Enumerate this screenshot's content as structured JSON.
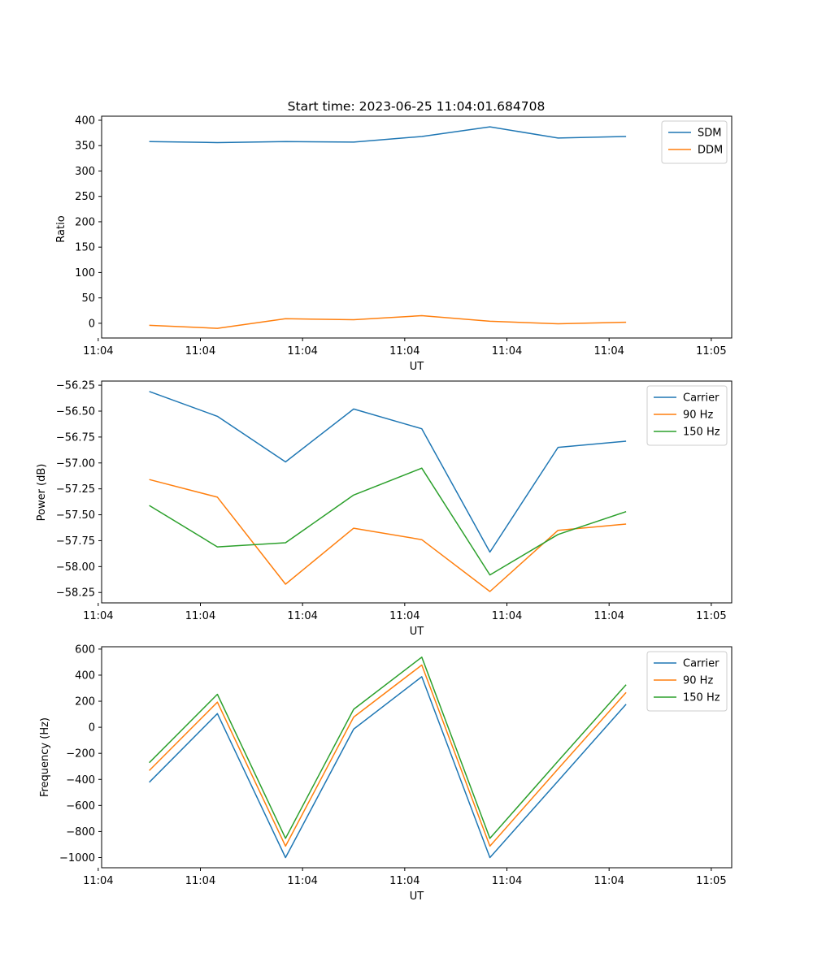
{
  "figure": {
    "title": "Start time: 2023-06-25 11:04:01.684708"
  },
  "colors": {
    "blue": "#1f77b4",
    "orange": "#ff7f0e",
    "green": "#2ca02c"
  },
  "chart_data": [
    {
      "type": "line",
      "title": "Start time: 2023-06-25 11:04:01.684708",
      "xlabel": "UT",
      "ylabel": "Ratio",
      "xlim": [
        -0.7,
        8.55
      ],
      "ylim": [
        -29,
        408
      ],
      "x": [
        0,
        1,
        2,
        3,
        4,
        5,
        6,
        7
      ],
      "xticks": [
        -0.75,
        0.75,
        2.25,
        3.75,
        5.25,
        6.75,
        8.25
      ],
      "xtick_labels": [
        "11:04",
        "11:04",
        "11:04",
        "11:04",
        "11:04",
        "11:04",
        "11:05"
      ],
      "yticks": [
        0,
        50,
        100,
        150,
        200,
        250,
        300,
        350,
        400
      ],
      "ytick_labels": [
        "0",
        "50",
        "100",
        "150",
        "200",
        "250",
        "300",
        "350",
        "400"
      ],
      "grid": false,
      "legend_position": "upper right",
      "series": [
        {
          "name": "SDM",
          "color": "#1f77b4",
          "values": [
            358,
            356,
            358,
            357,
            368,
            387,
            365,
            368
          ]
        },
        {
          "name": "DDM",
          "color": "#ff7f0e",
          "values": [
            -4,
            -10,
            9,
            7,
            15,
            4,
            -1,
            2
          ]
        }
      ]
    },
    {
      "type": "line",
      "title": "",
      "xlabel": "UT",
      "ylabel": "Power (dB)",
      "xlim": [
        -0.7,
        8.55
      ],
      "ylim": [
        -58.35,
        -56.21
      ],
      "x": [
        0,
        1,
        2,
        3,
        4,
        5,
        6,
        7
      ],
      "xticks": [
        -0.75,
        0.75,
        2.25,
        3.75,
        5.25,
        6.75,
        8.25
      ],
      "xtick_labels": [
        "11:04",
        "11:04",
        "11:04",
        "11:04",
        "11:04",
        "11:04",
        "11:05"
      ],
      "yticks": [
        -58.25,
        -58.0,
        -57.75,
        -57.5,
        -57.25,
        -57.0,
        -56.75,
        -56.5,
        -56.25
      ],
      "ytick_labels": [
        "−58.25",
        "−58.00",
        "−57.75",
        "−57.50",
        "−57.25",
        "−57.00",
        "−56.75",
        "−56.50",
        "−56.25"
      ],
      "grid": false,
      "legend_position": "upper right",
      "series": [
        {
          "name": "Carrier",
          "color": "#1f77b4",
          "values": [
            -56.31,
            -56.55,
            -56.99,
            -56.48,
            -56.67,
            -57.86,
            -56.85,
            -56.79
          ]
        },
        {
          "name": "90 Hz",
          "color": "#ff7f0e",
          "values": [
            -57.16,
            -57.33,
            -58.17,
            -57.63,
            -57.74,
            -58.24,
            -57.65,
            -57.59
          ]
        },
        {
          "name": "150 Hz",
          "color": "#2ca02c",
          "values": [
            -57.41,
            -57.81,
            -57.77,
            -57.31,
            -57.05,
            -58.08,
            -57.69,
            -57.47
          ]
        }
      ]
    },
    {
      "type": "line",
      "title": "",
      "xlabel": "UT",
      "ylabel": "Frequency (Hz)",
      "xlim": [
        -0.7,
        8.55
      ],
      "ylim": [
        -1078,
        618
      ],
      "x": [
        0,
        1,
        2,
        3,
        4,
        5,
        6,
        7
      ],
      "xticks": [
        -0.75,
        0.75,
        2.25,
        3.75,
        5.25,
        6.75,
        8.25
      ],
      "xtick_labels": [
        "11:04",
        "11:04",
        "11:04",
        "11:04",
        "11:04",
        "11:04",
        "11:05"
      ],
      "yticks": [
        -1000,
        -800,
        -600,
        -400,
        -200,
        0,
        200,
        400,
        600
      ],
      "ytick_labels": [
        "−1000",
        "−800",
        "−600",
        "−400",
        "−200",
        "0",
        "200",
        "400",
        "600"
      ],
      "grid": false,
      "legend_position": "upper right",
      "series": [
        {
          "name": "Carrier",
          "color": "#1f77b4",
          "values": [
            -422,
            105,
            -1000,
            -14,
            388,
            -1000,
            -412,
            177
          ]
        },
        {
          "name": "90 Hz",
          "color": "#ff7f0e",
          "values": [
            -332,
            193,
            -912,
            78,
            478,
            -912,
            -320,
            267
          ]
        },
        {
          "name": "150 Hz",
          "color": "#2ca02c",
          "values": [
            -272,
            253,
            -852,
            138,
            538,
            -852,
            -260,
            327
          ]
        }
      ]
    }
  ]
}
